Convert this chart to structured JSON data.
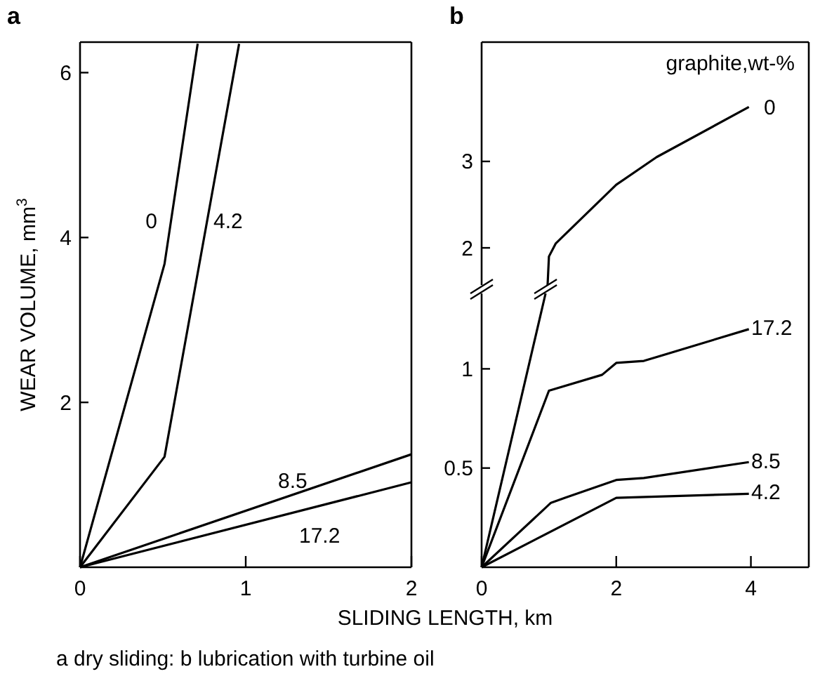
{
  "chart_data": [
    {
      "type": "line",
      "title": "a",
      "xlabel": "SLIDING LENGTH, km",
      "ylabel": "WEAR VOLUME, mm$^{3}$",
      "xlim": [
        0,
        2
      ],
      "ylim": [
        0,
        6.37
      ],
      "xticks": [
        0,
        1,
        2
      ],
      "yticks": [
        2,
        4,
        6
      ],
      "annotations": [
        "a dry sliding: b lubrication with turbine oil"
      ],
      "series": [
        {
          "name": "0",
          "color": "#000000",
          "x": [
            0,
            0.51,
            0.71
          ],
          "values": [
            0,
            3.68,
            6.35
          ]
        },
        {
          "name": "4.2",
          "color": "#000000",
          "x": [
            0,
            0.51,
            0.96
          ],
          "values": [
            0,
            1.34,
            6.35
          ]
        },
        {
          "name": "8.5",
          "color": "#000000",
          "x": [
            0,
            2
          ],
          "values": [
            0,
            1.37
          ]
        },
        {
          "name": "17.2",
          "color": "#000000",
          "x": [
            0,
            2
          ],
          "values": [
            0,
            1.03
          ]
        }
      ]
    },
    {
      "type": "line",
      "title": "b",
      "legend_title": "graphite,wt-%",
      "xlim": [
        0,
        4.86
      ],
      "ylim": [
        1.57,
        4.38
      ],
      "yticks": [
        2,
        3
      ],
      "tick_labels": "y",
      "series": [
        {
          "name": "0",
          "color": "#000000",
          "x": [
            0.98,
            1.0,
            1.1,
            2.0,
            2.6,
            3.97
          ],
          "values": [
            1.57,
            1.9,
            2.05,
            2.73,
            3.05,
            3.63
          ]
        }
      ]
    },
    {
      "type": "line",
      "xlim": [
        0,
        4.86
      ],
      "ylim": [
        0,
        1.38
      ],
      "xticks": [
        0,
        2,
        4
      ],
      "yticks": [
        0.5,
        1
      ],
      "series": [
        {
          "color": "#000000",
          "x": [
            0,
            0.95
          ],
          "values": [
            0,
            1.38
          ]
        },
        {
          "name": "17.2",
          "color": "#000000",
          "x": [
            0,
            1.0,
            1.79,
            2.0,
            2.41,
            3.97
          ],
          "values": [
            0,
            0.89,
            0.97,
            1.03,
            1.04,
            1.2
          ]
        },
        {
          "name": "8.5",
          "color": "#000000",
          "x": [
            0,
            1.03,
            1.24,
            2.0,
            2.41,
            3.97
          ],
          "values": [
            0,
            0.325,
            0.35,
            0.44,
            0.45,
            0.53
          ]
        },
        {
          "name": "4.2",
          "color": "#000000",
          "x": [
            0,
            2.0,
            3.97
          ],
          "values": [
            0,
            0.35,
            0.37
          ]
        }
      ]
    }
  ]
}
